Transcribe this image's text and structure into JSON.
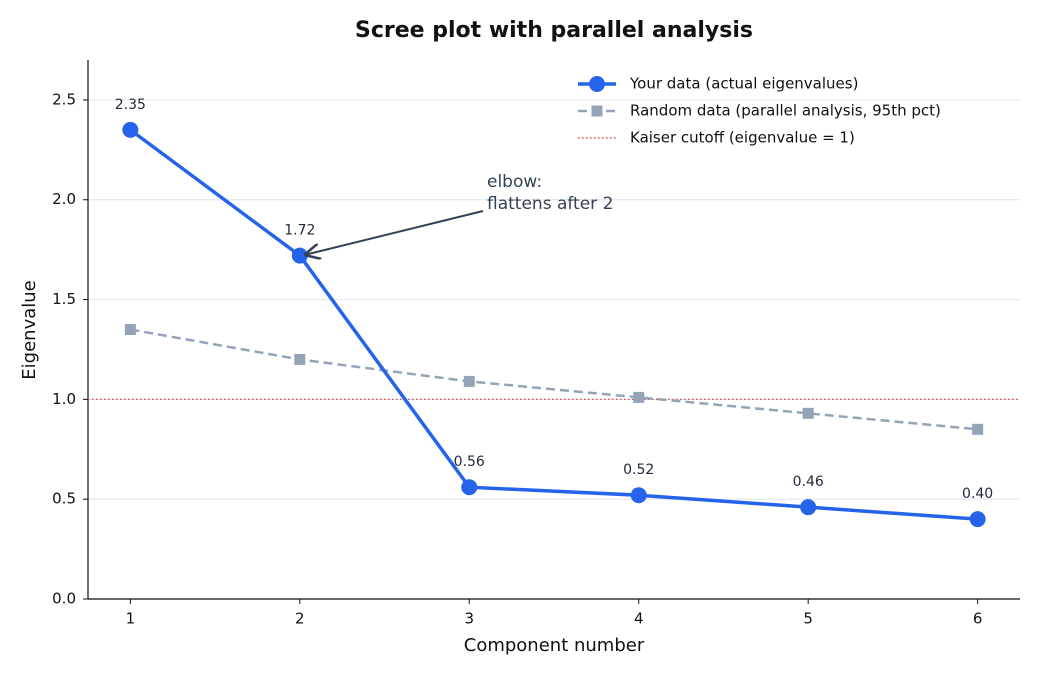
{
  "chart_data": {
    "type": "line",
    "title": "Scree plot with parallel analysis",
    "xlabel": "Component number",
    "ylabel": "Eigenvalue",
    "x": [
      1,
      2,
      3,
      4,
      5,
      6
    ],
    "series": [
      {
        "name": "Your data (actual eigenvalues)",
        "color": "#2563eb",
        "linestyle": "solid",
        "marker": "circle",
        "values": [
          2.35,
          1.72,
          0.56,
          0.52,
          0.46,
          0.4
        ],
        "value_labels": [
          "2.35",
          "1.72",
          "0.56",
          "0.52",
          "0.46",
          "0.40"
        ]
      },
      {
        "name": "Random data (parallel analysis, 95th pct)",
        "color": "#94a3b8",
        "linestyle": "dashed",
        "marker": "square",
        "values": [
          1.35,
          1.2,
          1.09,
          1.01,
          0.93,
          0.85
        ]
      }
    ],
    "kaiser": {
      "name": "Kaiser cutoff (eigenvalue = 1)",
      "value": 1,
      "color": "#ef4444"
    },
    "annotation": [
      "elbow:",
      "flattens after 2"
    ],
    "xlim": [
      0.75,
      6.25
    ],
    "xticks": [
      1,
      2,
      3,
      4,
      5,
      6
    ],
    "ylim": [
      0,
      2.7
    ],
    "yticks": [
      {
        "value": 0,
        "label": "0.0"
      },
      0.5,
      {
        "value": 1,
        "label": "1.0"
      },
      1.5,
      {
        "value": 2,
        "label": "2.0"
      },
      2.5
    ],
    "grid": true,
    "legend": "upper right"
  }
}
